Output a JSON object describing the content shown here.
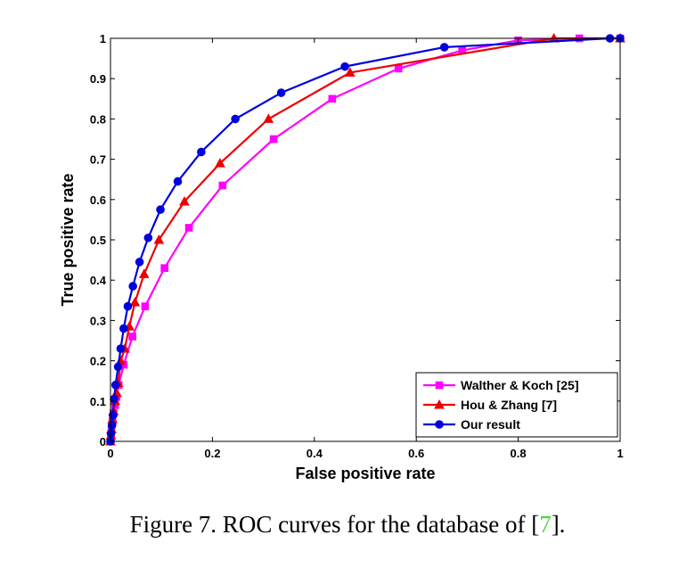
{
  "caption": {
    "prefix": "Figure 7. ROC curves for the database of [",
    "ref": "7",
    "suffix": "]."
  },
  "chart_data": {
    "type": "line",
    "xlabel": "False positive rate",
    "ylabel": "True positive rate",
    "xlim": [
      0,
      1
    ],
    "ylim": [
      0,
      1
    ],
    "x_ticks": [
      0,
      0.2,
      0.4,
      0.6,
      0.8,
      1
    ],
    "x_tick_labels": [
      "0",
      "0.2",
      "0.4",
      "0.6",
      "0.8",
      "1"
    ],
    "y_ticks": [
      0,
      0.1,
      0.2,
      0.3,
      0.4,
      0.5,
      0.6,
      0.7,
      0.8,
      0.9,
      1
    ],
    "y_tick_labels": [
      "0",
      "0.1",
      "0.2",
      "0.3",
      "0.4",
      "0.5",
      "0.6",
      "0.7",
      "0.8",
      "0.9",
      "1"
    ],
    "grid": false,
    "legend_position": "bottom-right",
    "series": [
      {
        "name": "Walther & Koch [25]",
        "color": "#ff00ff",
        "marker": "square",
        "points": [
          [
            0,
            0
          ],
          [
            0.001,
            0.01
          ],
          [
            0.002,
            0.03
          ],
          [
            0.004,
            0.05
          ],
          [
            0.006,
            0.07
          ],
          [
            0.009,
            0.09
          ],
          [
            0.012,
            0.11
          ],
          [
            0.016,
            0.14
          ],
          [
            0.026,
            0.19
          ],
          [
            0.043,
            0.26
          ],
          [
            0.068,
            0.335
          ],
          [
            0.106,
            0.43
          ],
          [
            0.154,
            0.53
          ],
          [
            0.22,
            0.635
          ],
          [
            0.32,
            0.75
          ],
          [
            0.435,
            0.85
          ],
          [
            0.565,
            0.925
          ],
          [
            0.69,
            0.97
          ],
          [
            0.8,
            0.995
          ],
          [
            0.92,
            1
          ],
          [
            1,
            1
          ]
        ]
      },
      {
        "name": "Hou & Zhang [7]",
        "color": "#ee0000",
        "marker": "triangle",
        "points": [
          [
            0,
            0
          ],
          [
            0.001,
            0.015
          ],
          [
            0.002,
            0.03
          ],
          [
            0.004,
            0.055
          ],
          [
            0.006,
            0.075
          ],
          [
            0.009,
            0.1
          ],
          [
            0.012,
            0.12
          ],
          [
            0.015,
            0.145
          ],
          [
            0.02,
            0.2
          ],
          [
            0.028,
            0.23
          ],
          [
            0.037,
            0.285
          ],
          [
            0.048,
            0.345
          ],
          [
            0.066,
            0.415
          ],
          [
            0.095,
            0.5
          ],
          [
            0.145,
            0.595
          ],
          [
            0.215,
            0.69
          ],
          [
            0.31,
            0.8
          ],
          [
            0.47,
            0.915
          ],
          [
            0.87,
            1
          ],
          [
            1,
            1
          ]
        ]
      },
      {
        "name": "Our result",
        "color": "#0000dd",
        "marker": "circle",
        "points": [
          [
            0,
            0
          ],
          [
            0.001,
            0.02
          ],
          [
            0.003,
            0.04
          ],
          [
            0.005,
            0.065
          ],
          [
            0.007,
            0.105
          ],
          [
            0.01,
            0.14
          ],
          [
            0.015,
            0.185
          ],
          [
            0.02,
            0.23
          ],
          [
            0.026,
            0.28
          ],
          [
            0.034,
            0.335
          ],
          [
            0.044,
            0.385
          ],
          [
            0.057,
            0.445
          ],
          [
            0.074,
            0.505
          ],
          [
            0.098,
            0.575
          ],
          [
            0.132,
            0.645
          ],
          [
            0.178,
            0.718
          ],
          [
            0.245,
            0.8
          ],
          [
            0.335,
            0.865
          ],
          [
            0.46,
            0.93
          ],
          [
            0.655,
            0.978
          ],
          [
            0.98,
            1
          ],
          [
            1,
            1
          ]
        ]
      }
    ]
  }
}
